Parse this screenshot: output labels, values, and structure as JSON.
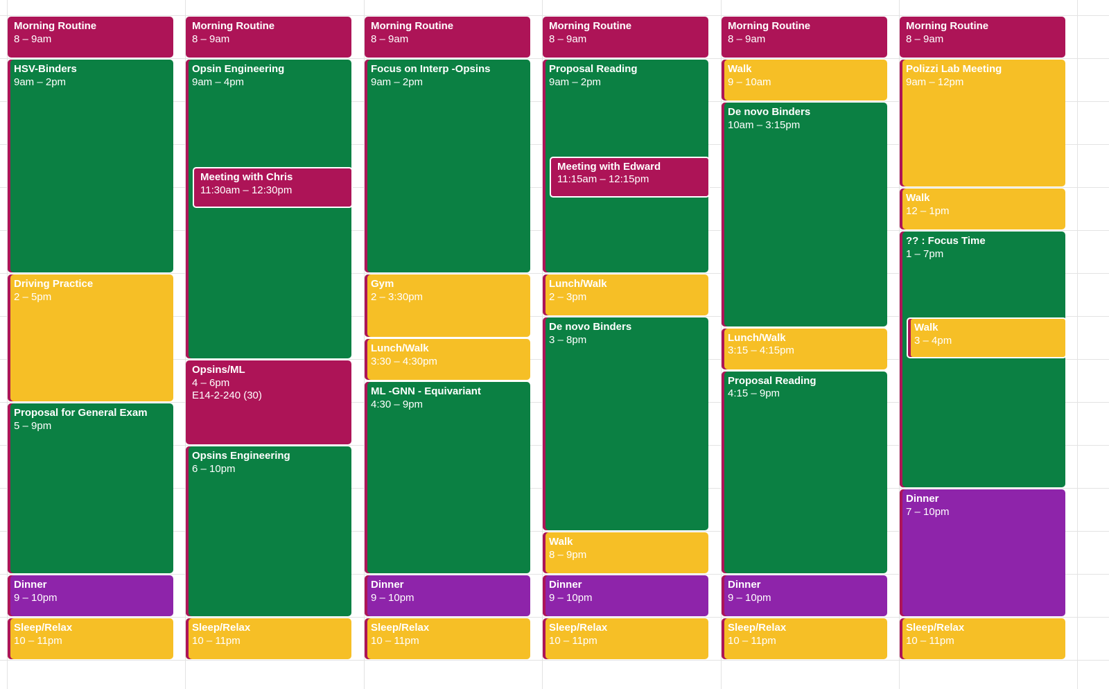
{
  "calendar": {
    "colors": {
      "magenta": "#ad1457",
      "green": "#0b8043",
      "yellow": "#f6bf26",
      "purple": "#8e24aa",
      "accent_strip": "#ad1457",
      "grid_line": "#e3e3e3"
    },
    "days": [
      {
        "events": [
          {
            "title": "Morning Routine",
            "time": "8 – 9am",
            "start": 8,
            "end": 9,
            "color": "magenta"
          },
          {
            "title": "HSV-Binders",
            "time": "9am – 2pm",
            "start": 9,
            "end": 14,
            "color": "green"
          },
          {
            "title": "Driving Practice",
            "time": "2 – 5pm",
            "start": 14,
            "end": 17,
            "color": "yellow"
          },
          {
            "title": "Proposal for General Exam",
            "time": "5 – 9pm",
            "start": 17,
            "end": 21,
            "color": "green"
          },
          {
            "title": "Dinner",
            "time": "9 – 10pm",
            "start": 21,
            "end": 22,
            "color": "purple"
          },
          {
            "title": "Sleep/Relax",
            "time": "10 – 11pm",
            "start": 22,
            "end": 23,
            "color": "yellow"
          }
        ]
      },
      {
        "events": [
          {
            "title": "Morning Routine",
            "time": "8 – 9am",
            "start": 8,
            "end": 9,
            "color": "magenta"
          },
          {
            "title": "Opsin Engineering",
            "time": "9am – 4pm",
            "start": 9,
            "end": 16,
            "color": "green"
          },
          {
            "title": "Meeting with Chris",
            "time": "11:30am – 12:30pm",
            "start": 11.5,
            "end": 12.5,
            "color": "magenta",
            "inner": true
          },
          {
            "title": "Opsins/ML",
            "time": "4 – 6pm",
            "location": "E14-2-240 (30)",
            "start": 16,
            "end": 18,
            "color": "magenta"
          },
          {
            "title": "Opsins Engineering",
            "time": "6 – 10pm",
            "start": 18,
            "end": 22,
            "color": "green"
          },
          {
            "title": "Sleep/Relax",
            "time": "10 – 11pm",
            "start": 22,
            "end": 23,
            "color": "yellow"
          }
        ]
      },
      {
        "events": [
          {
            "title": "Morning Routine",
            "time": "8 – 9am",
            "start": 8,
            "end": 9,
            "color": "magenta"
          },
          {
            "title": "Focus on Interp -Opsins",
            "time": "9am – 2pm",
            "start": 9,
            "end": 14,
            "color": "green"
          },
          {
            "title": "Gym",
            "time": "2 – 3:30pm",
            "start": 14,
            "end": 15.5,
            "color": "yellow"
          },
          {
            "title": "Lunch/Walk",
            "time": "3:30 – 4:30pm",
            "start": 15.5,
            "end": 16.5,
            "color": "yellow"
          },
          {
            "title": "ML -GNN - Equivariant",
            "time": "4:30 – 9pm",
            "start": 16.5,
            "end": 21,
            "color": "green"
          },
          {
            "title": "Dinner",
            "time": "9 – 10pm",
            "start": 21,
            "end": 22,
            "color": "purple"
          },
          {
            "title": "Sleep/Relax",
            "time": "10 – 11pm",
            "start": 22,
            "end": 23,
            "color": "yellow"
          }
        ]
      },
      {
        "events": [
          {
            "title": "Morning Routine",
            "time": "8 – 9am",
            "start": 8,
            "end": 9,
            "color": "magenta"
          },
          {
            "title": "Proposal Reading",
            "time": "9am – 2pm",
            "start": 9,
            "end": 14,
            "color": "green"
          },
          {
            "title": "Meeting with Edward",
            "time": "11:15am – 12:15pm",
            "start": 11.25,
            "end": 12.25,
            "color": "magenta",
            "inner": true
          },
          {
            "title": "Lunch/Walk",
            "time": "2 – 3pm",
            "start": 14,
            "end": 15,
            "color": "yellow"
          },
          {
            "title": "De novo Binders",
            "time": "3 – 8pm",
            "start": 15,
            "end": 20,
            "color": "green"
          },
          {
            "title": "Walk",
            "time": "8 – 9pm",
            "start": 20,
            "end": 21,
            "color": "yellow"
          },
          {
            "title": "Dinner",
            "time": "9 – 10pm",
            "start": 21,
            "end": 22,
            "color": "purple"
          },
          {
            "title": "Sleep/Relax",
            "time": "10 – 11pm",
            "start": 22,
            "end": 23,
            "color": "yellow"
          }
        ]
      },
      {
        "events": [
          {
            "title": "Morning Routine",
            "time": "8 – 9am",
            "start": 8,
            "end": 9,
            "color": "magenta"
          },
          {
            "title": "Walk",
            "time": "9 – 10am",
            "start": 9,
            "end": 10,
            "color": "yellow"
          },
          {
            "title": "De novo Binders",
            "time": "10am – 3:15pm",
            "start": 10,
            "end": 15.25,
            "color": "green"
          },
          {
            "title": "Lunch/Walk",
            "time": "3:15 – 4:15pm",
            "start": 15.25,
            "end": 16.25,
            "color": "yellow"
          },
          {
            "title": "Proposal Reading",
            "time": "4:15 – 9pm",
            "start": 16.25,
            "end": 21,
            "color": "green"
          },
          {
            "title": "Dinner",
            "time": "9 – 10pm",
            "start": 21,
            "end": 22,
            "color": "purple"
          },
          {
            "title": "Sleep/Relax",
            "time": "10 – 11pm",
            "start": 22,
            "end": 23,
            "color": "yellow"
          }
        ]
      },
      {
        "events": [
          {
            "title": "Morning Routine",
            "time": "8 – 9am",
            "start": 8,
            "end": 9,
            "color": "magenta"
          },
          {
            "title": "Polizzi Lab Meeting",
            "time": "9am – 12pm",
            "start": 9,
            "end": 12,
            "color": "yellow"
          },
          {
            "title": "Walk",
            "time": "12 – 1pm",
            "start": 12,
            "end": 13,
            "color": "yellow"
          },
          {
            "title": "?? : Focus Time",
            "time": "1 – 7pm",
            "start": 13,
            "end": 19,
            "color": "green"
          },
          {
            "title": "Walk",
            "time": "3 – 4pm",
            "start": 15,
            "end": 16,
            "color": "yellow",
            "inner": true
          },
          {
            "title": "Dinner",
            "time": "7 – 10pm",
            "start": 19,
            "end": 22,
            "color": "purple"
          },
          {
            "title": "Sleep/Relax",
            "time": "10 – 11pm",
            "start": 22,
            "end": 23,
            "color": "yellow"
          }
        ]
      }
    ]
  }
}
